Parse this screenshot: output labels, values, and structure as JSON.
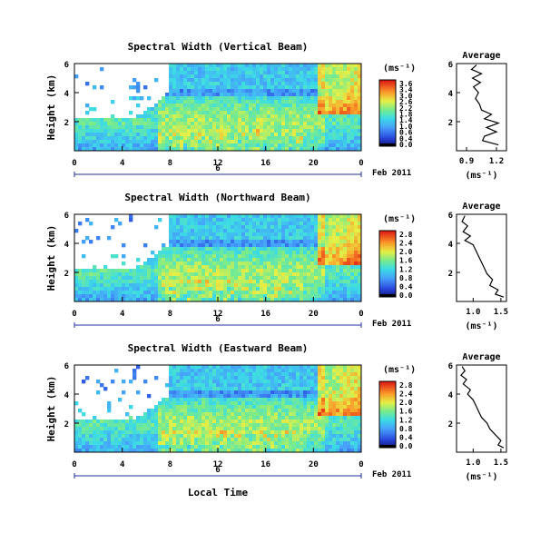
{
  "chart_data": [
    {
      "type": "heatmap",
      "title": "Spectral Width (Vertical Beam)",
      "ylabel": "Height (km)",
      "x_ticks": [
        "0",
        "4",
        "8",
        "12",
        "16",
        "20",
        "0"
      ],
      "date_tick": "6",
      "date_label": "Feb 2011",
      "y_ticks": [
        "6",
        "4",
        "2"
      ],
      "ylim": [
        0,
        6
      ],
      "xlim": [
        0,
        24
      ],
      "colorbar": {
        "unit": "(ms⁻¹)",
        "ticks": [
          "3.6",
          "3.4",
          "3.0",
          "2.6",
          "2.2",
          "1.8",
          "1.4",
          "1.0",
          "0.6",
          "0.4",
          "0.0"
        ],
        "range": [
          0.0,
          3.6
        ]
      },
      "average": {
        "title": "Average",
        "xlabel": "(ms⁻¹)",
        "x_ticks": [
          "0.9",
          "1.2"
        ],
        "xlim": [
          0.8,
          1.3
        ],
        "y_ticks": [
          "6",
          "4",
          "2"
        ],
        "ylim": [
          0,
          6
        ],
        "profile": [
          [
            1.0,
            5.9
          ],
          [
            0.95,
            5.6
          ],
          [
            1.05,
            5.3
          ],
          [
            0.96,
            5.0
          ],
          [
            1.04,
            4.7
          ],
          [
            0.97,
            4.4
          ],
          [
            1.02,
            4.0
          ],
          [
            0.99,
            3.6
          ],
          [
            1.03,
            3.2
          ],
          [
            1.05,
            2.8
          ],
          [
            1.15,
            2.5
          ],
          [
            1.08,
            2.2
          ],
          [
            1.22,
            1.9
          ],
          [
            1.1,
            1.6
          ],
          [
            1.2,
            1.3
          ],
          [
            1.08,
            1.0
          ],
          [
            1.06,
            0.7
          ],
          [
            1.22,
            0.4
          ]
        ]
      }
    },
    {
      "type": "heatmap",
      "title": "Spectral Width (Northward Beam)",
      "ylabel": "Height (km)",
      "x_ticks": [
        "0",
        "4",
        "8",
        "12",
        "16",
        "20",
        "0"
      ],
      "date_tick": "6",
      "date_label": "Feb 2011",
      "y_ticks": [
        "6",
        "4",
        "2"
      ],
      "ylim": [
        0,
        6
      ],
      "xlim": [
        0,
        24
      ],
      "colorbar": {
        "unit": "(ms⁻¹)",
        "ticks": [
          "2.8",
          "2.4",
          "2.0",
          "1.6",
          "1.2",
          "0.8",
          "0.4",
          "0.0"
        ],
        "range": [
          0.0,
          2.8
        ]
      },
      "average": {
        "title": "Average",
        "xlabel": "(ms⁻¹)",
        "x_ticks": [
          "1.0",
          "1.5"
        ],
        "xlim": [
          0.7,
          1.6
        ],
        "y_ticks": [
          "6",
          "4",
          "2"
        ],
        "ylim": [
          0,
          6
        ],
        "profile": [
          [
            0.85,
            5.9
          ],
          [
            0.8,
            5.5
          ],
          [
            0.9,
            5.2
          ],
          [
            0.82,
            4.8
          ],
          [
            0.95,
            4.5
          ],
          [
            0.85,
            4.2
          ],
          [
            1.0,
            3.9
          ],
          [
            1.05,
            3.5
          ],
          [
            1.1,
            3.1
          ],
          [
            1.15,
            2.7
          ],
          [
            1.2,
            2.3
          ],
          [
            1.25,
            1.9
          ],
          [
            1.35,
            1.5
          ],
          [
            1.3,
            1.1
          ],
          [
            1.45,
            0.8
          ],
          [
            1.4,
            0.5
          ],
          [
            1.55,
            0.3
          ]
        ]
      }
    },
    {
      "type": "heatmap",
      "title": "Spectral Width (Eastward Beam)",
      "ylabel": "Height (km)",
      "x_ticks": [
        "0",
        "4",
        "8",
        "12",
        "16",
        "20",
        "0"
      ],
      "date_tick": "6",
      "date_label": "Feb 2011",
      "xlabel": "Local Time",
      "y_ticks": [
        "6",
        "4",
        "2"
      ],
      "ylim": [
        0,
        6
      ],
      "xlim": [
        0,
        24
      ],
      "colorbar": {
        "unit": "(ms⁻¹)",
        "ticks": [
          "2.8",
          "2.4",
          "2.0",
          "1.6",
          "1.2",
          "0.8",
          "0.4",
          "0.0"
        ],
        "range": [
          0.0,
          2.8
        ]
      },
      "average": {
        "title": "Average",
        "xlabel": "(ms⁻¹)",
        "x_ticks": [
          "1.0",
          "1.5"
        ],
        "xlim": [
          0.7,
          1.6
        ],
        "y_ticks": [
          "6",
          "4",
          "2"
        ],
        "ylim": [
          0,
          6
        ],
        "profile": [
          [
            0.8,
            5.9
          ],
          [
            0.85,
            5.6
          ],
          [
            0.78,
            5.3
          ],
          [
            0.88,
            5.0
          ],
          [
            0.82,
            4.7
          ],
          [
            0.95,
            4.3
          ],
          [
            0.9,
            4.0
          ],
          [
            1.0,
            3.6
          ],
          [
            1.05,
            3.2
          ],
          [
            1.1,
            2.8
          ],
          [
            1.15,
            2.4
          ],
          [
            1.25,
            2.0
          ],
          [
            1.3,
            1.6
          ],
          [
            1.4,
            1.2
          ],
          [
            1.5,
            0.8
          ],
          [
            1.45,
            0.5
          ],
          [
            1.55,
            0.3
          ]
        ]
      }
    }
  ]
}
